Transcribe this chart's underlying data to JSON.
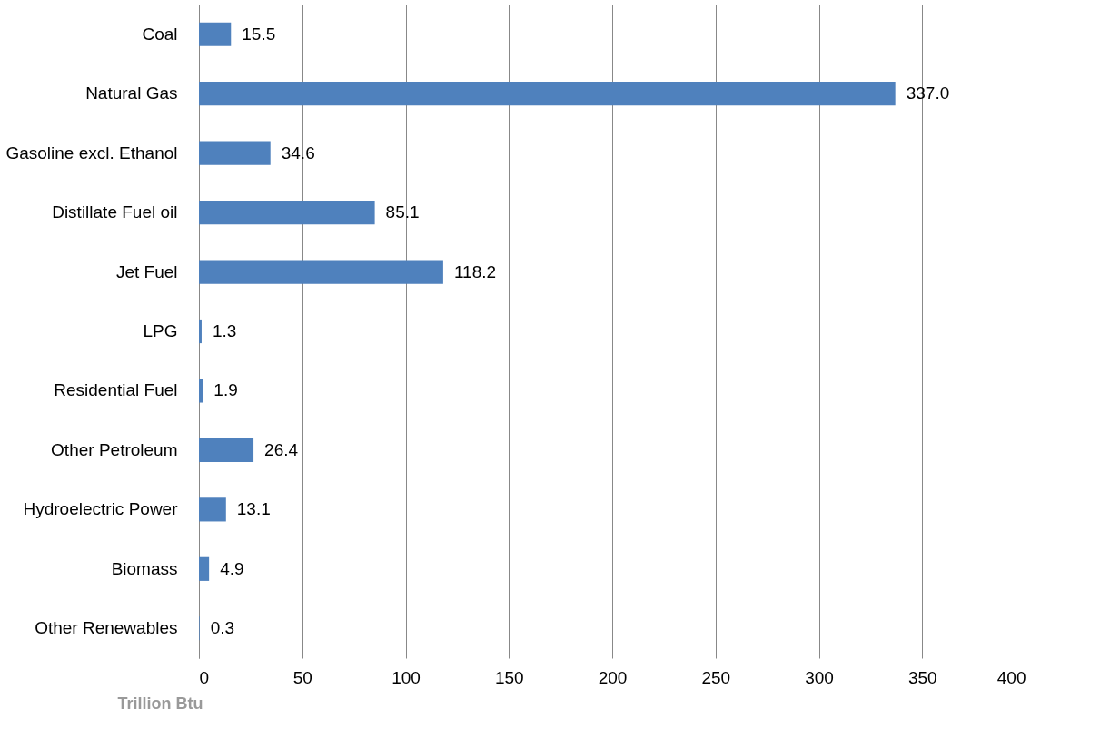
{
  "chart_data": {
    "type": "bar",
    "orientation": "horizontal",
    "xlabel": "Trillion Btu",
    "categories": [
      "Coal",
      "Natural Gas",
      "Gasoline excl. Ethanol",
      "Distillate Fuel oil",
      "Jet Fuel",
      "LPG",
      "Residential Fuel",
      "Other Petroleum",
      "Hydroelectric Power",
      "Biomass",
      "Other Renewables"
    ],
    "values": [
      15.5,
      337.0,
      34.6,
      85.1,
      118.2,
      1.3,
      1.9,
      26.4,
      13.1,
      4.9,
      0.3
    ],
    "value_labels": [
      "15.5",
      "337.0",
      "34.6",
      "85.1",
      "118.2",
      "1.3",
      "1.9",
      "26.4",
      "13.1",
      "4.9",
      "0.3"
    ],
    "color": "#4f81bd",
    "xlim": [
      0,
      400
    ],
    "xticks": [
      0,
      50,
      100,
      150,
      200,
      250,
      300,
      350,
      400
    ],
    "grid": "x"
  }
}
